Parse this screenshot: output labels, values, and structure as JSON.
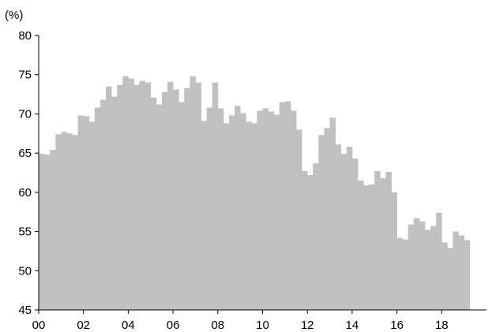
{
  "chart_data": {
    "type": "area",
    "ylabel": "(%)",
    "xlabel": "",
    "title": "",
    "ylim": [
      45,
      80
    ],
    "yticks": [
      45,
      50,
      55,
      60,
      65,
      70,
      75,
      80
    ],
    "xlim": [
      2000,
      2020
    ],
    "xticks": [
      {
        "value": 2000,
        "label": "00"
      },
      {
        "value": 2002,
        "label": "02"
      },
      {
        "value": 2004,
        "label": "04"
      },
      {
        "value": 2006,
        "label": "06"
      },
      {
        "value": 2008,
        "label": "08"
      },
      {
        "value": 2010,
        "label": "10"
      },
      {
        "value": 2012,
        "label": "12"
      },
      {
        "value": 2014,
        "label": "14"
      },
      {
        "value": 2016,
        "label": "16"
      },
      {
        "value": 2018,
        "label": "18"
      }
    ],
    "grid": false,
    "color": "#c0c0c0",
    "x_start": 2000,
    "step": 0.25,
    "values": [
      64.9,
      64.8,
      65.4,
      67.4,
      67.7,
      67.5,
      67.3,
      69.8,
      69.7,
      69.0,
      70.8,
      71.8,
      73.5,
      72.2,
      73.7,
      74.8,
      74.5,
      73.7,
      74.2,
      74.0,
      72.1,
      71.2,
      72.8,
      74.1,
      73.1,
      71.5,
      73.3,
      74.8,
      74.0,
      69.1,
      70.8,
      74.0,
      70.7,
      68.8,
      69.8,
      71.0,
      70.1,
      69.0,
      68.8,
      70.4,
      70.7,
      70.3,
      69.9,
      71.5,
      71.6,
      70.4,
      68.0,
      62.7,
      62.2,
      63.7,
      67.3,
      68.2,
      69.5,
      66.1,
      64.9,
      65.8,
      64.3,
      61.5,
      60.9,
      61.0,
      62.7,
      61.8,
      62.6,
      60.0,
      54.2,
      54.0,
      55.9,
      56.7,
      56.3,
      55.2,
      55.7,
      57.4,
      53.6,
      52.9,
      55.0,
      54.5,
      53.9
    ]
  }
}
